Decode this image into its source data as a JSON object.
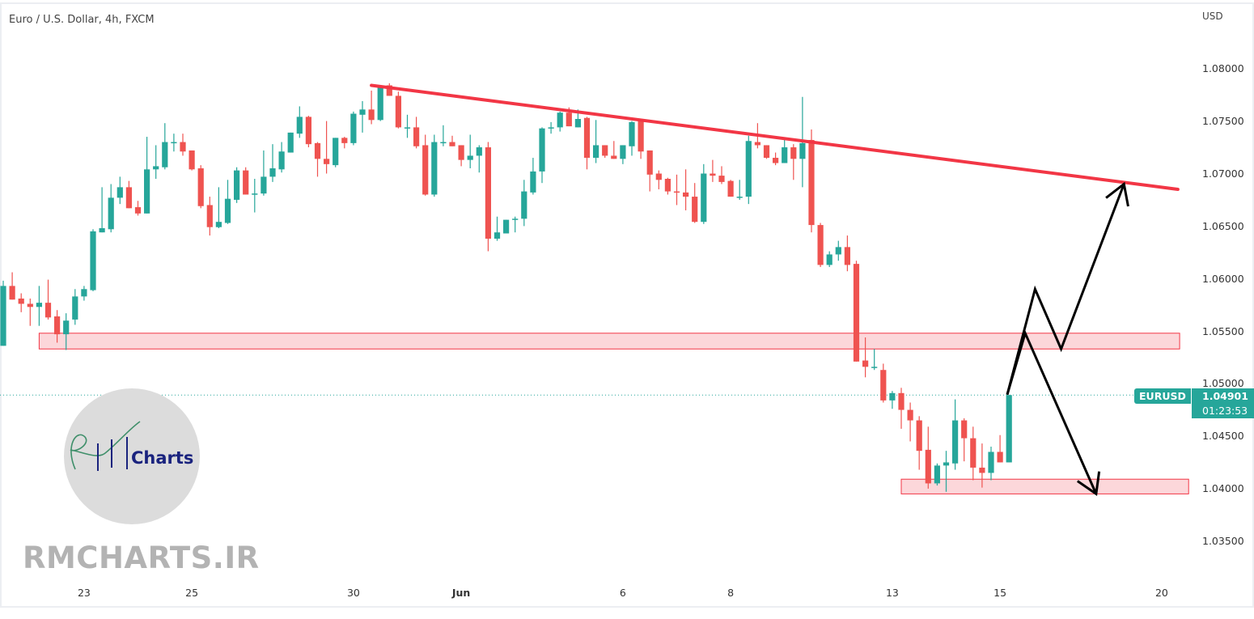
{
  "header": {
    "title": "Euro / U.S. Dollar, 4h, FXCM",
    "currency": "USD"
  },
  "price_tag": {
    "symbol": "EURUSD",
    "price": "1.04901",
    "countdown": "01:23:53",
    "color": "#26a69a"
  },
  "watermark": {
    "logo_text": "Charts",
    "site": "RMCHARTS.IR"
  },
  "chart_data": {
    "type": "candlestick",
    "title": "Euro / U.S. Dollar, 4h, FXCM",
    "ylabel": "USD",
    "ylim": [
      1.0323,
      1.0866
    ],
    "y_ticks": [
      "1.08000",
      "1.07500",
      "1.07000",
      "1.06500",
      "1.06000",
      "1.05500",
      "1.05000",
      "1.04500",
      "1.04000",
      "1.03500"
    ],
    "x_ticks": [
      {
        "label": "23",
        "candle": 9
      },
      {
        "label": "25",
        "candle": 21
      },
      {
        "label": "30",
        "candle": 39
      },
      {
        "label": "Jun",
        "candle": 51
      },
      {
        "label": "6",
        "candle": 69
      },
      {
        "label": "8",
        "candle": 81
      },
      {
        "label": "13",
        "candle": 99
      },
      {
        "label": "15",
        "candle": 111
      },
      {
        "label": "20",
        "candle": 129
      }
    ],
    "colors": {
      "up": "#26a69a",
      "down": "#ef5350",
      "trendline": "#f23645",
      "zone": "#f23645",
      "arrows": "#000000"
    },
    "ohlc": [
      [
        1.0537,
        1.0599,
        1.0537,
        1.0594
      ],
      [
        1.0594,
        1.0607,
        1.0581,
        1.0581
      ],
      [
        1.0582,
        1.0587,
        1.0569,
        1.0577
      ],
      [
        1.0577,
        1.0582,
        1.0556,
        1.0574
      ],
      [
        1.0574,
        1.0594,
        1.0556,
        1.0578
      ],
      [
        1.0578,
        1.06,
        1.0562,
        1.0564
      ],
      [
        1.0565,
        1.0571,
        1.054,
        1.0548
      ],
      [
        1.0548,
        1.0568,
        1.0533,
        1.0561
      ],
      [
        1.0562,
        1.0591,
        1.0557,
        1.0584
      ],
      [
        1.0584,
        1.0594,
        1.058,
        1.0591
      ],
      [
        1.059,
        1.0648,
        1.0589,
        1.0646
      ],
      [
        1.0645,
        1.0688,
        1.0645,
        1.0649
      ],
      [
        1.0648,
        1.0691,
        1.0645,
        1.0678
      ],
      [
        1.0678,
        1.0698,
        1.0672,
        1.0688
      ],
      [
        1.0688,
        1.0694,
        1.0668,
        1.0668
      ],
      [
        1.0669,
        1.0675,
        1.0661,
        1.0663
      ],
      [
        1.0663,
        1.0736,
        1.0663,
        1.0705
      ],
      [
        1.0705,
        1.0728,
        1.0696,
        1.0708
      ],
      [
        1.0707,
        1.0749,
        1.0705,
        1.0731
      ],
      [
        1.0731,
        1.0739,
        1.0722,
        1.0731
      ],
      [
        1.0731,
        1.0739,
        1.0718,
        1.0722
      ],
      [
        1.0723,
        1.0723,
        1.0704,
        1.0705
      ],
      [
        1.0706,
        1.0709,
        1.0668,
        1.067
      ],
      [
        1.0671,
        1.0679,
        1.0642,
        1.065
      ],
      [
        1.065,
        1.0688,
        1.0649,
        1.0655
      ],
      [
        1.0654,
        1.0695,
        1.0653,
        1.0677
      ],
      [
        1.0676,
        1.0707,
        1.0673,
        1.0704
      ],
      [
        1.0704,
        1.0707,
        1.0681,
        1.0681
      ],
      [
        1.0681,
        1.0696,
        1.0664,
        1.0682
      ],
      [
        1.0682,
        1.0723,
        1.068,
        1.0698
      ],
      [
        1.0698,
        1.0729,
        1.0693,
        1.0706
      ],
      [
        1.0705,
        1.0731,
        1.0702,
        1.0722
      ],
      [
        1.0721,
        1.074,
        1.0721,
        1.074
      ],
      [
        1.0739,
        1.0765,
        1.0735,
        1.0755
      ],
      [
        1.0755,
        1.0756,
        1.0726,
        1.0729
      ],
      [
        1.073,
        1.0731,
        1.0698,
        1.0715
      ],
      [
        1.0715,
        1.0751,
        1.0701,
        1.071
      ],
      [
        1.0709,
        1.0735,
        1.0707,
        1.0735
      ],
      [
        1.0735,
        1.0736,
        1.0725,
        1.073
      ],
      [
        1.073,
        1.076,
        1.0728,
        1.0758
      ],
      [
        1.0757,
        1.077,
        1.074,
        1.0762
      ],
      [
        1.0762,
        1.078,
        1.0748,
        1.0752
      ],
      [
        1.0752,
        1.0784,
        1.0751,
        1.0783
      ],
      [
        1.0785,
        1.0787,
        1.0775,
        1.0775
      ],
      [
        1.0775,
        1.0779,
        1.0744,
        1.0745
      ],
      [
        1.0745,
        1.0757,
        1.0735,
        1.0745
      ],
      [
        1.0745,
        1.0755,
        1.0725,
        1.0727
      ],
      [
        1.0728,
        1.0738,
        1.068,
        1.0681
      ],
      [
        1.0681,
        1.0738,
        1.0679,
        1.0731
      ],
      [
        1.0731,
        1.0747,
        1.0727,
        1.0731
      ],
      [
        1.0731,
        1.0737,
        1.0727,
        1.0727
      ],
      [
        1.0728,
        1.0728,
        1.0708,
        1.0714
      ],
      [
        1.0714,
        1.0738,
        1.0706,
        1.0718
      ],
      [
        1.0718,
        1.0728,
        1.0702,
        1.0726
      ],
      [
        1.0726,
        1.0731,
        1.0627,
        1.0639
      ],
      [
        1.0639,
        1.066,
        1.0637,
        1.0645
      ],
      [
        1.0644,
        1.0657,
        1.0644,
        1.0657
      ],
      [
        1.0658,
        1.066,
        1.0645,
        1.0658
      ],
      [
        1.0658,
        1.0695,
        1.0651,
        1.0684
      ],
      [
        1.0683,
        1.0716,
        1.0681,
        1.0703
      ],
      [
        1.0703,
        1.0745,
        1.0692,
        1.0744
      ],
      [
        1.0745,
        1.075,
        1.0739,
        1.0745
      ],
      [
        1.0745,
        1.076,
        1.0741,
        1.0759
      ],
      [
        1.0759,
        1.0764,
        1.0746,
        1.0746
      ],
      [
        1.0745,
        1.0762,
        1.0745,
        1.0753
      ],
      [
        1.0754,
        1.0755,
        1.0705,
        1.0716
      ],
      [
        1.0716,
        1.0752,
        1.0711,
        1.0728
      ],
      [
        1.0728,
        1.0728,
        1.0716,
        1.0718
      ],
      [
        1.0718,
        1.0732,
        1.0715,
        1.0715
      ],
      [
        1.0715,
        1.0728,
        1.071,
        1.0728
      ],
      [
        1.0727,
        1.0751,
        1.0718,
        1.075
      ],
      [
        1.0751,
        1.0752,
        1.0715,
        1.0722
      ],
      [
        1.0723,
        1.0723,
        1.0684,
        1.07
      ],
      [
        1.0701,
        1.0704,
        1.0686,
        1.0695
      ],
      [
        1.0696,
        1.0697,
        1.0681,
        1.0684
      ],
      [
        1.0684,
        1.07,
        1.0671,
        1.0683
      ],
      [
        1.0683,
        1.0705,
        1.0666,
        1.0679
      ],
      [
        1.0679,
        1.0692,
        1.0654,
        1.0655
      ],
      [
        1.0655,
        1.071,
        1.0653,
        1.0701
      ],
      [
        1.0701,
        1.0714,
        1.0693,
        1.0699
      ],
      [
        1.0699,
        1.0708,
        1.0691,
        1.0693
      ],
      [
        1.0694,
        1.0695,
        1.0679,
        1.0679
      ],
      [
        1.0679,
        1.0695,
        1.0676,
        1.0679
      ],
      [
        1.0679,
        1.0737,
        1.0672,
        1.0732
      ],
      [
        1.0731,
        1.0749,
        1.0725,
        1.0728
      ],
      [
        1.0728,
        1.0728,
        1.0715,
        1.0716
      ],
      [
        1.0716,
        1.0721,
        1.0709,
        1.0711
      ],
      [
        1.0711,
        1.0733,
        1.0711,
        1.0726
      ],
      [
        1.0726,
        1.0729,
        1.0695,
        1.0715
      ],
      [
        1.0715,
        1.0774,
        1.0688,
        1.073
      ],
      [
        1.0733,
        1.0743,
        1.0645,
        1.0652
      ],
      [
        1.0652,
        1.0654,
        1.0612,
        1.0614
      ],
      [
        1.0614,
        1.0627,
        1.0612,
        1.0624
      ],
      [
        1.0624,
        1.0637,
        1.0618,
        1.0631
      ],
      [
        1.0631,
        1.0642,
        1.0608,
        1.0614
      ],
      [
        1.0615,
        1.0618,
        1.0522,
        1.0522
      ],
      [
        1.0523,
        1.0545,
        1.0507,
        1.0517
      ],
      [
        1.0517,
        1.0534,
        1.0514,
        1.0517
      ],
      [
        1.0514,
        1.052,
        1.0483,
        1.0485
      ],
      [
        1.0485,
        1.0494,
        1.0477,
        1.0492
      ],
      [
        1.0492,
        1.0497,
        1.0458,
        1.0476
      ],
      [
        1.0476,
        1.0483,
        1.0446,
        1.0466
      ],
      [
        1.0466,
        1.047,
        1.0419,
        1.0437
      ],
      [
        1.0438,
        1.046,
        1.0401,
        1.0406
      ],
      [
        1.0406,
        1.0425,
        1.0404,
        1.0423
      ],
      [
        1.0423,
        1.0437,
        1.0398,
        1.0426
      ],
      [
        1.0425,
        1.0486,
        1.0419,
        1.0466
      ],
      [
        1.0466,
        1.0468,
        1.0427,
        1.0449
      ],
      [
        1.0449,
        1.046,
        1.0409,
        1.0421
      ],
      [
        1.0421,
        1.0444,
        1.0402,
        1.0416
      ],
      [
        1.0416,
        1.0441,
        1.0409,
        1.0436
      ],
      [
        1.0436,
        1.0452,
        1.0426,
        1.0426
      ],
      [
        1.0426,
        1.04901,
        1.0426,
        1.04901
      ]
    ],
    "last_price": 1.04901,
    "drawings": {
      "trendline": {
        "from": [
          41,
          1.0785
        ],
        "to": [
          130.8,
          1.0686
        ]
      },
      "zones": [
        {
          "from": [
            4,
            1.0549
          ],
          "to": [
            131,
            1.0534
          ]
        },
        {
          "from": [
            100,
            1.041
          ],
          "to": [
            132,
            1.0396
          ]
        }
      ],
      "arrows": [
        {
          "points": [
            [
              111.8,
              1.04905
            ],
            [
              114.9,
              1.0591
            ],
            [
              117.8,
              1.0534
            ],
            [
              124.8,
              1.0691
            ]
          ]
        },
        {
          "points": [
            [
              111.8,
              1.04905
            ],
            [
              113.8,
              1.0549
            ],
            [
              121.7,
              1.0396
            ]
          ]
        }
      ]
    }
  }
}
